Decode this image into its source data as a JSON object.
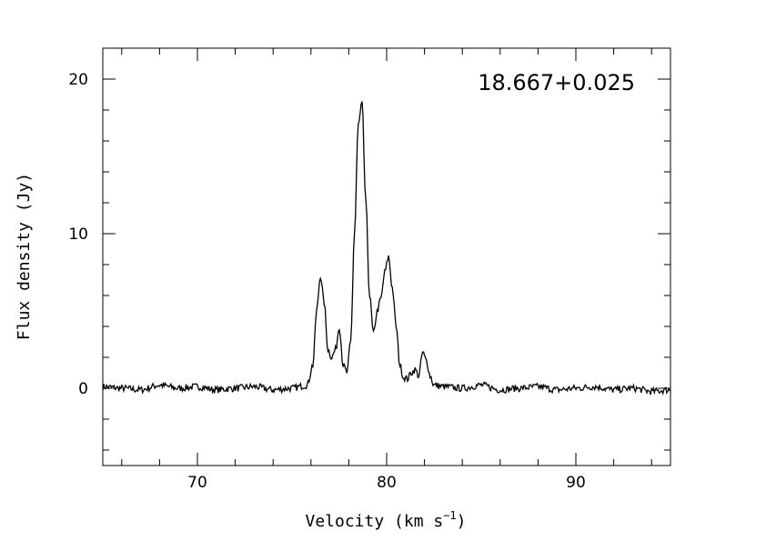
{
  "chart_data": {
    "type": "line",
    "xlabel": "Velocity (km s",
    "xlabel_sup": "−1",
    "xlabel_close": ")",
    "ylabel": "Flux density (Jy)",
    "annotation": "18.667+0.025",
    "xlim": [
      65.0,
      95.0
    ],
    "ylim": [
      -5.0,
      22.0
    ],
    "xticks": [
      70,
      80,
      90
    ],
    "xtick_labels": [
      "70",
      "80",
      "90"
    ],
    "yticks": [
      0,
      10,
      20
    ],
    "ytick_labels": [
      "0",
      "10",
      "20"
    ],
    "x_minor_step": 2,
    "y_minor_step": 2,
    "grid": false,
    "line_color": "#000000",
    "series": [
      {
        "x": [
          65.0,
          66.0,
          67.0,
          68.0,
          69.0,
          70.0,
          71.0,
          72.0,
          73.0,
          74.0,
          75.0,
          75.8,
          76.1,
          76.3,
          76.5,
          76.7,
          76.9,
          77.1,
          77.3,
          77.5,
          77.7,
          77.9,
          78.1,
          78.3,
          78.5,
          78.7,
          78.9,
          79.1,
          79.3,
          79.5,
          79.7,
          79.9,
          80.1,
          80.3,
          80.5,
          80.7,
          80.9,
          81.1,
          81.3,
          81.5,
          81.7,
          81.9,
          82.1,
          82.3,
          82.5,
          83.0,
          84.0,
          85.0,
          86.0,
          87.0,
          88.0,
          89.0,
          90.0,
          91.0,
          92.0,
          93.0,
          94.0,
          95.0
        ],
        "y": [
          0.1,
          0.0,
          -0.1,
          0.2,
          0.0,
          0.1,
          -0.1,
          0.0,
          0.1,
          -0.1,
          0.0,
          0.2,
          1.5,
          5.0,
          7.3,
          5.5,
          2.5,
          2.0,
          2.5,
          4.0,
          1.5,
          1.0,
          3.0,
          10.0,
          17.0,
          18.4,
          12.0,
          6.0,
          3.5,
          5.0,
          5.8,
          7.5,
          8.5,
          6.5,
          4.0,
          1.5,
          0.7,
          0.6,
          1.0,
          1.2,
          0.8,
          2.3,
          1.8,
          0.8,
          0.2,
          0.1,
          0.0,
          0.2,
          -0.1,
          0.0,
          0.1,
          -0.1,
          0.0,
          0.1,
          -0.1,
          0.0,
          -0.2,
          -0.1
        ]
      }
    ]
  }
}
